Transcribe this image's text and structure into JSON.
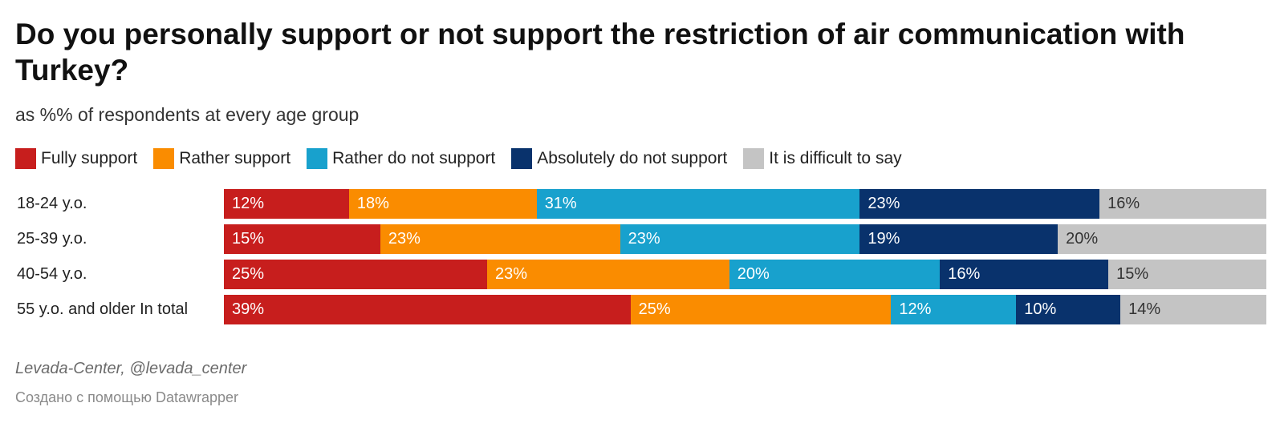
{
  "title": "Do you personally support or not support the restriction of air communication with Turkey?",
  "subtitle": "as %% of respondents at every age group",
  "legend": [
    {
      "label": "Fully support",
      "color": "#c71e1d"
    },
    {
      "label": "Rather support",
      "color": "#fa8c00"
    },
    {
      "label": "Rather do not support",
      "color": "#18a1cd"
    },
    {
      "label": "Absolutely do not support",
      "color": "#09326c"
    },
    {
      "label": "It is difficult to say",
      "color": "#c4c4c4"
    }
  ],
  "footer": {
    "source": "Levada-Center, @levada_center",
    "credit": "Создано с помощью Datawrapper"
  },
  "chart_data": {
    "type": "bar",
    "orientation": "horizontal",
    "stacked": true,
    "title": "Do you personally support or not support the restriction of air communication with Turkey?",
    "subtitle": "as %% of respondents at every age group",
    "categories": [
      "18-24 y.o.",
      "25-39 y.o.",
      "40-54 y.o.",
      "55 y.o. and older In total"
    ],
    "series": [
      {
        "name": "Fully support",
        "color": "#c71e1d",
        "values": [
          12,
          15,
          25,
          39
        ],
        "labels": [
          "12%",
          "15%",
          "25%",
          "39%"
        ]
      },
      {
        "name": "Rather support",
        "color": "#fa8c00",
        "values": [
          18,
          23,
          23,
          25
        ],
        "labels": [
          "18%",
          "23%",
          "23%",
          "25%"
        ]
      },
      {
        "name": "Rather do not support",
        "color": "#18a1cd",
        "values": [
          31,
          23,
          20,
          12
        ],
        "labels": [
          "31%",
          "23%",
          "20%",
          "12%"
        ]
      },
      {
        "name": "Absolutely do not support",
        "color": "#09326c",
        "values": [
          23,
          19,
          16,
          10
        ],
        "labels": [
          "23%",
          "19%",
          "16%",
          "10%"
        ]
      },
      {
        "name": "It is difficult to say",
        "color": "#c4c4c4",
        "values": [
          16,
          20,
          15,
          14
        ],
        "labels": [
          "16%",
          "20%",
          "15%",
          "14%"
        ]
      }
    ],
    "legend_position": "top",
    "grid": false
  }
}
